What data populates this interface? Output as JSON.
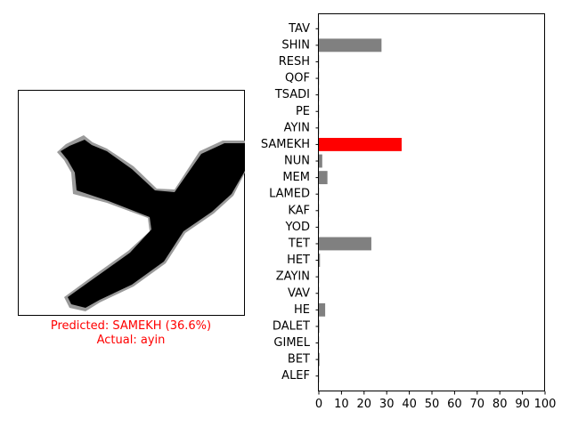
{
  "image_panel": {
    "caption": {
      "predicted_label": "Predicted: SAMEKH (36.6%)",
      "actual_label": "Actual: ayin"
    },
    "caption_color": "#ff0000"
  },
  "chart_data": {
    "type": "bar",
    "orientation": "horizontal",
    "categories": [
      "ALEF",
      "BET",
      "GIMEL",
      "DALET",
      "HE",
      "VAV",
      "ZAYIN",
      "HET",
      "TET",
      "YOD",
      "KAF",
      "LAMED",
      "MEM",
      "NUN",
      "SAMEKH",
      "AYIN",
      "PE",
      "TSADI",
      "QOF",
      "RESH",
      "SHIN",
      "TAV"
    ],
    "values": [
      0.1,
      0.3,
      0.1,
      0.2,
      2.8,
      0.1,
      0.1,
      0.5,
      23.2,
      0.1,
      0.1,
      0.1,
      3.8,
      1.5,
      36.6,
      0.1,
      0.1,
      0.1,
      0.1,
      0.1,
      27.7,
      0.1
    ],
    "highlight": "SAMEKH",
    "colors": {
      "default": "#808080",
      "highlight": "#ff0000"
    },
    "xlim": [
      0,
      100
    ],
    "xticks": [
      0,
      10,
      20,
      30,
      40,
      50,
      60,
      70,
      80,
      90,
      100
    ],
    "grid": false
  }
}
